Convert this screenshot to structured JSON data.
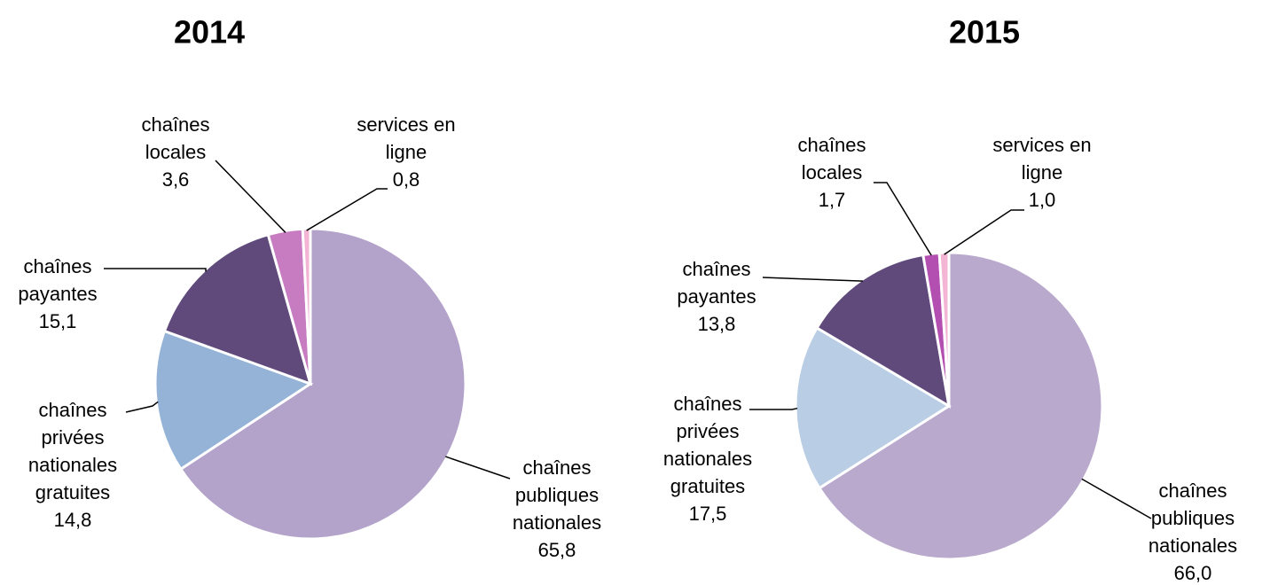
{
  "chart_data": [
    {
      "type": "pie",
      "title": "2014",
      "categories": [
        "chaînes\npubliques\nnationales",
        "chaînes\nprivées\nnationales\ngratuites",
        "chaînes\npayantes",
        "chaînes\nlocales",
        "services en\nligne"
      ],
      "values": [
        65.8,
        14.8,
        15.1,
        3.6,
        0.8
      ],
      "value_labels": [
        "65,8",
        "14,8",
        "15,1",
        "3,6",
        "0,8"
      ],
      "colors": [
        "#b3a2c9",
        "#95b3d7",
        "#604a7b",
        "#c77bc0",
        "#f2b5d4"
      ]
    },
    {
      "type": "pie",
      "title": "2015",
      "categories": [
        "chaînes\npubliques\nnationales",
        "chaînes\nprivées\nnationales\ngratuites",
        "chaînes\npayantes",
        "chaînes\nlocales",
        "services en\nligne"
      ],
      "values": [
        66.0,
        17.5,
        13.8,
        1.7,
        1.0
      ],
      "value_labels": [
        "66,0",
        "17,5",
        "13,8",
        "1,7",
        "1,0"
      ],
      "colors": [
        "#b9a9cd",
        "#b9cde5",
        "#604a7b",
        "#b34fb0",
        "#f2b5d4"
      ]
    }
  ]
}
